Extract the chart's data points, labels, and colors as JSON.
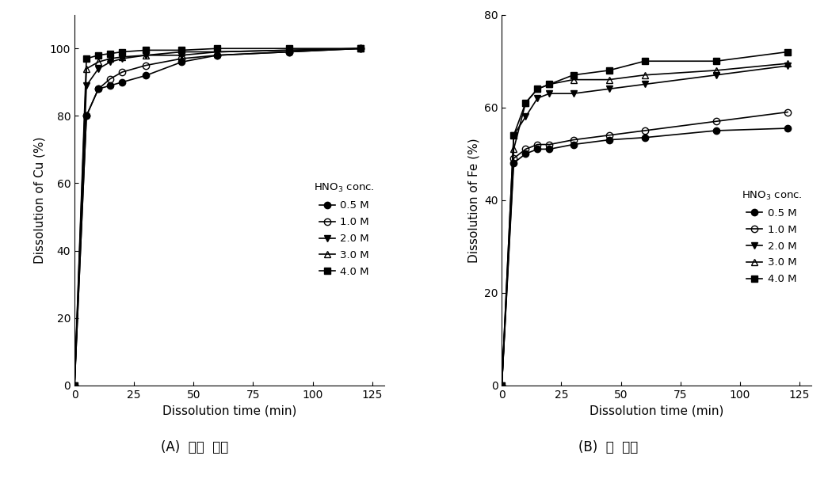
{
  "time_points": [
    0,
    5,
    10,
    15,
    20,
    30,
    45,
    60,
    90,
    120
  ],
  "Cu": {
    "0.5M": [
      0,
      80,
      88,
      89,
      90,
      92,
      96,
      98,
      99,
      100
    ],
    "1.0M": [
      0,
      80,
      88,
      91,
      93,
      95,
      97,
      98,
      99,
      100
    ],
    "2.0M": [
      0,
      89,
      94,
      96,
      97,
      98,
      98,
      99,
      99.5,
      100
    ],
    "3.0M": [
      0,
      94,
      96,
      97,
      97.5,
      98,
      99,
      99,
      99.5,
      100
    ],
    "4.0M": [
      0,
      97,
      98,
      98.5,
      99,
      99.5,
      99.5,
      100,
      100,
      100
    ]
  },
  "Fe": {
    "0.5M": [
      0,
      48,
      50,
      51,
      51,
      52,
      53,
      53.5,
      55,
      55.5
    ],
    "1.0M": [
      0,
      49,
      51,
      52,
      52,
      53,
      54,
      55,
      57,
      59
    ],
    "2.0M": [
      0,
      54,
      58,
      62,
      63,
      63,
      64,
      65,
      67,
      69
    ],
    "3.0M": [
      0,
      51,
      61,
      64,
      65,
      66,
      66,
      67,
      68,
      69.5
    ],
    "4.0M": [
      0,
      54,
      61,
      64,
      65,
      67,
      68,
      70,
      70,
      72
    ]
  },
  "legend_title": "HNO$_3$ conc.",
  "legend_labels": [
    "0.5 M",
    "1.0 M",
    "2.0 M",
    "3.0 M",
    "4.0 M"
  ],
  "xlabel": "Dissolution time (min)",
  "ylabel_cu": "Dissolution of Cu (%)",
  "ylabel_fe": "Dissolution of Fe (%)",
  "caption_A": "(A)  구리  용해",
  "caption_B": "(B)  철  용해",
  "xlim": [
    0,
    130
  ],
  "xticks": [
    0,
    25,
    50,
    75,
    100,
    125
  ],
  "cu_ylim": [
    0,
    110
  ],
  "cu_yticks": [
    0,
    20,
    40,
    60,
    80,
    100
  ],
  "fe_ylim": [
    0,
    80
  ],
  "fe_yticks": [
    0,
    20,
    40,
    60,
    80
  ],
  "line_color": "#000000",
  "bg_color": "#ffffff",
  "markers": [
    "o",
    "o",
    "v",
    "^",
    "s"
  ],
  "fillstyles": [
    "full",
    "none",
    "full",
    "none",
    "full"
  ]
}
